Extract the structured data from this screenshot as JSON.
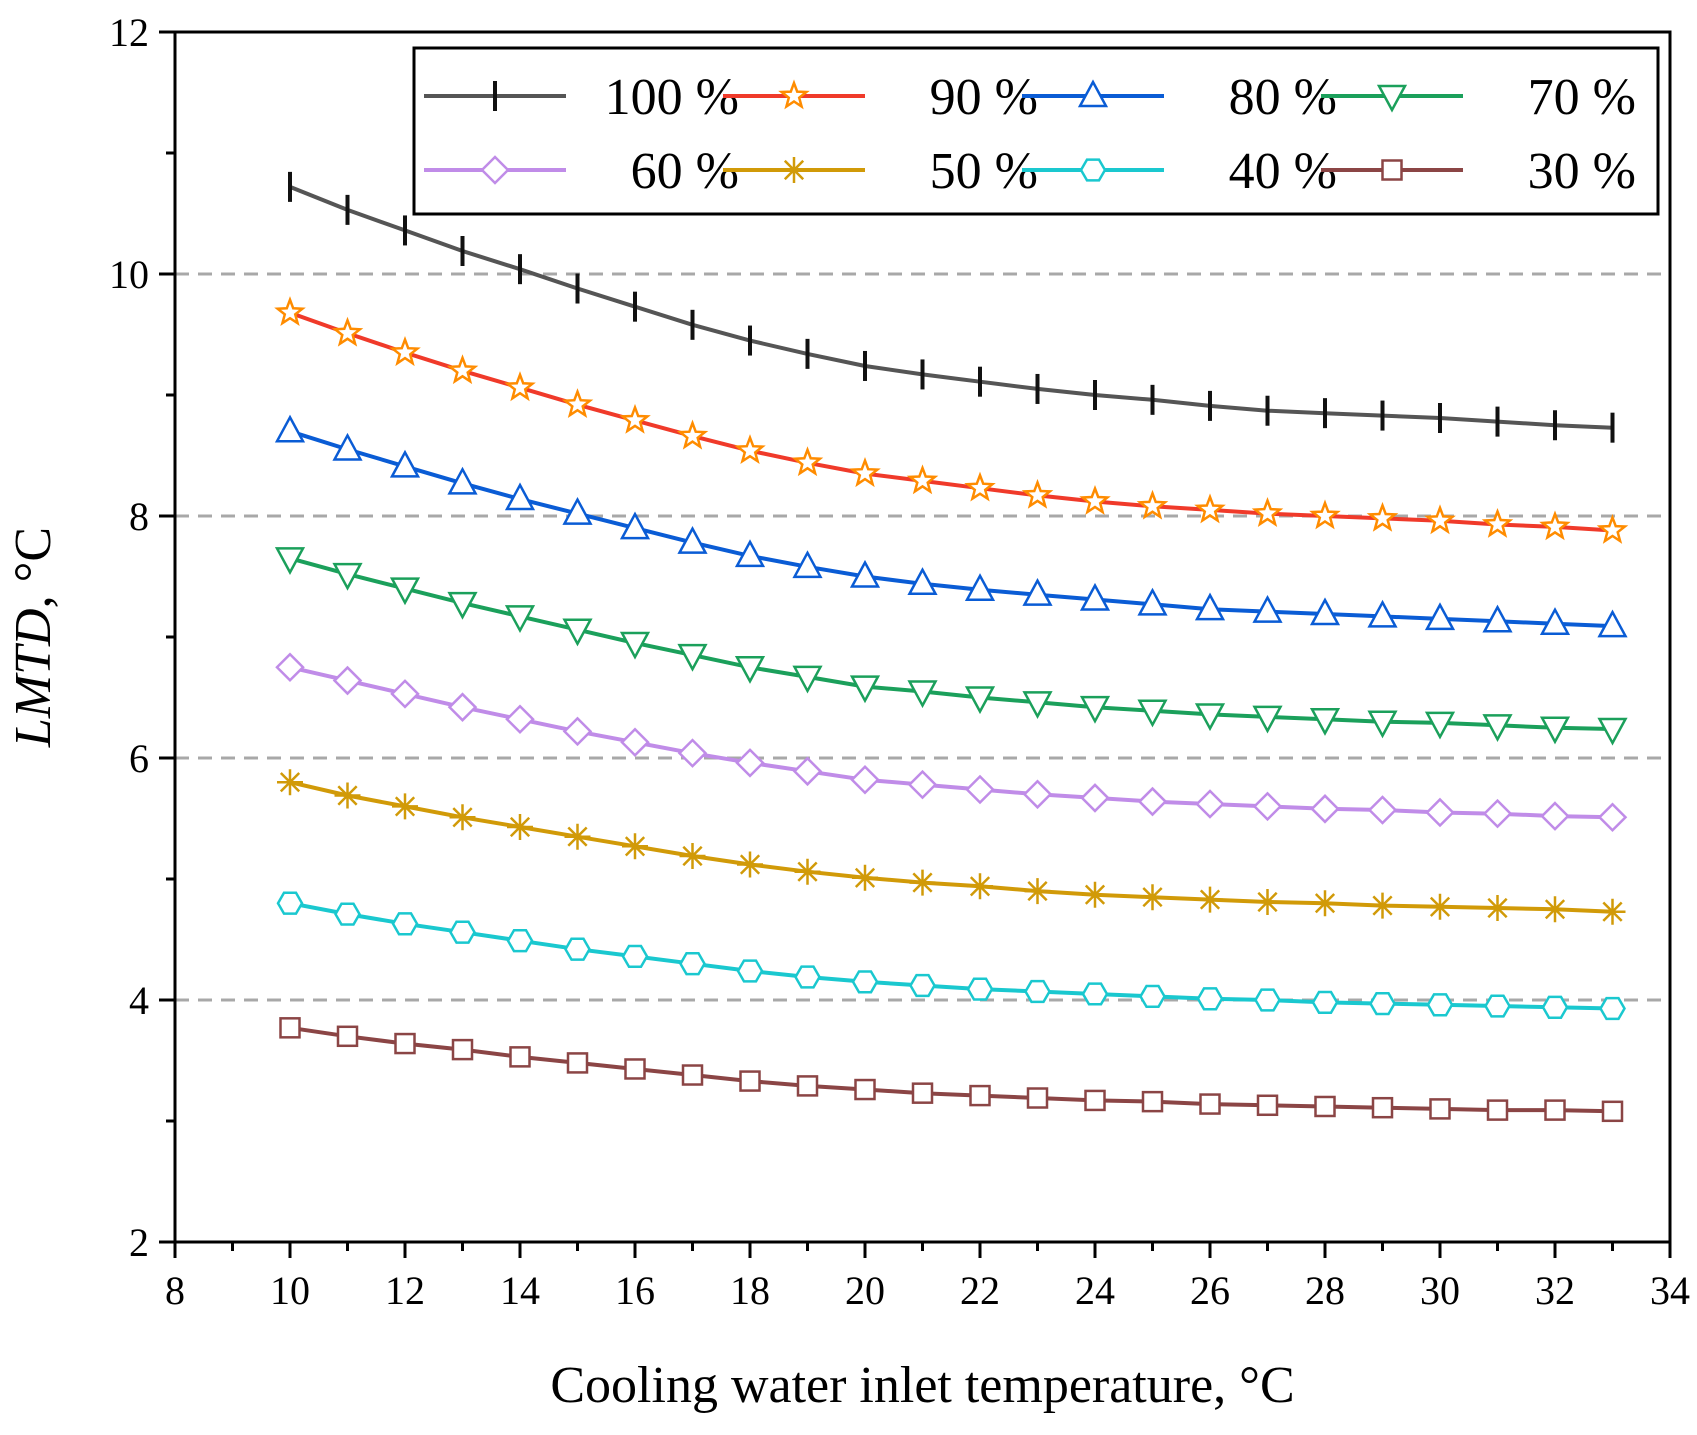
{
  "chart_data": {
    "type": "line",
    "xlabel": "Cooling water inlet temperature, °C",
    "ylabel": {
      "italic": "LMTD",
      "suffix": ", °C"
    },
    "xlim": [
      8,
      34
    ],
    "ylim": [
      2,
      12
    ],
    "xticks": [
      "8",
      "10",
      "12",
      "14",
      "16",
      "18",
      "20",
      "22",
      "24",
      "26",
      "28",
      "30",
      "32",
      "34"
    ],
    "yticks": [
      "2",
      "4",
      "6",
      "8",
      "10",
      "12"
    ],
    "grid": {
      "y": [
        4,
        6,
        8,
        10
      ],
      "style": "dashed"
    },
    "legend_position": "top-right",
    "x": [
      10,
      11,
      12,
      13,
      14,
      15,
      16,
      17,
      18,
      19,
      20,
      21,
      22,
      23,
      24,
      25,
      26,
      27,
      28,
      29,
      30,
      31,
      32,
      33
    ],
    "series": [
      {
        "name": "100 %",
        "color": "#555555",
        "marker": "vline",
        "values": [
          10.72,
          10.53,
          10.36,
          10.19,
          10.04,
          9.88,
          9.73,
          9.58,
          9.45,
          9.34,
          9.24,
          9.17,
          9.11,
          9.05,
          9.0,
          8.96,
          8.91,
          8.87,
          8.85,
          8.83,
          8.81,
          8.78,
          8.75,
          8.73
        ]
      },
      {
        "name": "90 %",
        "color": "#f03a2a",
        "marker": "star",
        "marker_color": "#ff8c00",
        "values": [
          9.68,
          9.51,
          9.35,
          9.2,
          9.06,
          8.92,
          8.79,
          8.66,
          8.54,
          8.44,
          8.35,
          8.29,
          8.23,
          8.17,
          8.12,
          8.08,
          8.05,
          8.02,
          8.0,
          7.98,
          7.96,
          7.93,
          7.91,
          7.88
        ]
      },
      {
        "name": "80 %",
        "color": "#0a5cd5",
        "marker": "triangle-up",
        "values": [
          8.7,
          8.55,
          8.41,
          8.27,
          8.14,
          8.02,
          7.9,
          7.78,
          7.67,
          7.58,
          7.5,
          7.44,
          7.39,
          7.35,
          7.31,
          7.27,
          7.23,
          7.21,
          7.19,
          7.17,
          7.15,
          7.13,
          7.11,
          7.09
        ]
      },
      {
        "name": "70 %",
        "color": "#1ba05b",
        "marker": "triangle-down",
        "values": [
          7.65,
          7.52,
          7.4,
          7.28,
          7.17,
          7.06,
          6.95,
          6.85,
          6.75,
          6.67,
          6.59,
          6.55,
          6.5,
          6.46,
          6.42,
          6.39,
          6.36,
          6.34,
          6.32,
          6.3,
          6.29,
          6.27,
          6.25,
          6.24
        ]
      },
      {
        "name": "60 %",
        "color": "#c08ce8",
        "marker": "diamond",
        "values": [
          6.75,
          6.64,
          6.53,
          6.42,
          6.32,
          6.22,
          6.13,
          6.04,
          5.96,
          5.89,
          5.82,
          5.78,
          5.74,
          5.7,
          5.67,
          5.64,
          5.62,
          5.6,
          5.58,
          5.57,
          5.55,
          5.54,
          5.52,
          5.51
        ]
      },
      {
        "name": "50 %",
        "color": "#d19a08",
        "marker": "asterisk",
        "values": [
          5.8,
          5.69,
          5.6,
          5.51,
          5.43,
          5.35,
          5.27,
          5.19,
          5.12,
          5.06,
          5.01,
          4.97,
          4.94,
          4.9,
          4.87,
          4.85,
          4.83,
          4.81,
          4.8,
          4.78,
          4.77,
          4.76,
          4.75,
          4.73
        ]
      },
      {
        "name": "40 %",
        "color": "#1ac8cf",
        "marker": "hexagon",
        "values": [
          4.8,
          4.71,
          4.63,
          4.56,
          4.49,
          4.42,
          4.36,
          4.3,
          4.24,
          4.19,
          4.15,
          4.12,
          4.09,
          4.07,
          4.05,
          4.03,
          4.01,
          4.0,
          3.98,
          3.97,
          3.96,
          3.95,
          3.94,
          3.93
        ]
      },
      {
        "name": "30 %",
        "color": "#8b4545",
        "marker": "square",
        "values": [
          3.77,
          3.7,
          3.64,
          3.59,
          3.53,
          3.48,
          3.43,
          3.38,
          3.33,
          3.29,
          3.26,
          3.23,
          3.21,
          3.19,
          3.17,
          3.16,
          3.14,
          3.13,
          3.12,
          3.11,
          3.1,
          3.09,
          3.09,
          3.08
        ]
      }
    ]
  }
}
